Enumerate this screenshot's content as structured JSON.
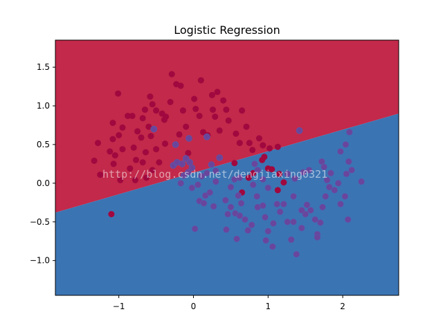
{
  "chart_data": {
    "type": "scatter",
    "title": "Logistic Regression",
    "xlabel": "",
    "ylabel": "",
    "xlim": [
      -1.85,
      2.75
    ],
    "ylim": [
      -1.45,
      1.85
    ],
    "xticks": [
      -1,
      0,
      1,
      2
    ],
    "yticks": [
      -1.0,
      -0.5,
      0.0,
      0.5,
      1.0,
      1.5
    ],
    "grid": false,
    "legend": "none",
    "decision_boundary": {
      "x": [
        -1.85,
        2.75
      ],
      "y": [
        -0.38,
        0.9
      ],
      "region_above": "class 0",
      "region_below": "class 1"
    },
    "colors": {
      "region_above": "#c2294a",
      "region_below": "#3b74b3",
      "class_0": "#a0083f",
      "class_1": "#6a459c",
      "class_1_edge": "#5260b2"
    },
    "series": [
      {
        "class": 0,
        "points": [
          [
            -1.28,
            0.52
          ],
          [
            -1.33,
            0.29
          ],
          [
            -1.25,
            0.11
          ],
          [
            -1.12,
            0.41
          ],
          [
            -1.07,
            0.25
          ],
          [
            -1.05,
            0.36
          ],
          [
            -1.08,
            0.57
          ],
          [
            -1.08,
            0.78
          ],
          [
            -1.0,
            0.62
          ],
          [
            -0.95,
            0.44
          ],
          [
            -0.95,
            0.72
          ],
          [
            -0.88,
            0.87
          ],
          [
            -0.82,
            0.87
          ],
          [
            -0.75,
            0.67
          ],
          [
            -0.8,
            0.46
          ],
          [
            -0.7,
            0.59
          ],
          [
            -0.68,
            0.84
          ],
          [
            -0.65,
            0.95
          ],
          [
            -0.6,
            0.73
          ],
          [
            -0.58,
            1.12
          ],
          [
            -0.55,
            1.02
          ],
          [
            -0.5,
            0.94
          ],
          [
            -0.42,
            0.9
          ],
          [
            -0.39,
            0.82
          ],
          [
            -0.31,
            1.05
          ],
          [
            -0.29,
            1.41
          ],
          [
            -0.23,
            1.28
          ],
          [
            -0.17,
            1.26
          ],
          [
            -0.64,
            0.4
          ],
          [
            -0.57,
            0.61
          ],
          [
            -0.5,
            0.44
          ],
          [
            -0.38,
            0.51
          ],
          [
            -0.46,
            0.27
          ],
          [
            -0.68,
            0.27
          ],
          [
            -0.77,
            0.3
          ],
          [
            -0.85,
            0.19
          ],
          [
            -0.55,
            0.17
          ],
          [
            -0.78,
            0.04
          ],
          [
            -0.63,
            0.07
          ],
          [
            -0.98,
            0.04
          ],
          [
            -1.01,
            1.16
          ],
          [
            -0.19,
            0.63
          ],
          [
            -0.14,
            0.94
          ],
          [
            -0.1,
            0.73
          ],
          [
            -0.07,
            0.39
          ],
          [
            0.01,
            1.09
          ],
          [
            0.03,
            0.96
          ],
          [
            0.08,
            0.87
          ],
          [
            0.1,
            1.33
          ],
          [
            0.13,
            0.66
          ],
          [
            0.19,
            0.62
          ],
          [
            0.25,
            1.14
          ],
          [
            0.26,
            0.95
          ],
          [
            0.29,
            0.86
          ],
          [
            0.32,
            1.18
          ],
          [
            0.35,
            0.68
          ],
          [
            0.4,
            1.07
          ],
          [
            0.44,
            0.95
          ],
          [
            0.47,
            0.81
          ],
          [
            0.57,
            0.64
          ],
          [
            0.62,
            0.52
          ],
          [
            0.65,
            0.94
          ],
          [
            0.71,
            0.73
          ],
          [
            0.75,
            0.52
          ],
          [
            0.79,
            0.43
          ],
          [
            0.88,
            0.58
          ],
          [
            0.93,
            0.49
          ],
          [
            1.02,
            0.45
          ],
          [
            1.13,
            0.47
          ],
          [
            0.95,
            0.34
          ],
          [
            0.92,
            0.3
          ],
          [
            1.0,
            0.19
          ],
          [
            1.05,
            0.18
          ],
          [
            1.15,
            0.12
          ],
          [
            0.8,
            0.13
          ],
          [
            0.74,
            0.07
          ],
          [
            0.55,
            0.26
          ],
          [
            1.13,
            -0.09
          ],
          [
            1.21,
            0.01
          ],
          [
            0.65,
            -0.12
          ],
          [
            -0.37,
            0.86
          ],
          [
            -1.1,
            -0.4
          ]
        ]
      },
      {
        "class": 1,
        "points": [
          [
            -0.27,
            0.23
          ],
          [
            -0.22,
            0.27
          ],
          [
            -0.15,
            0.25
          ],
          [
            -0.1,
            0.32
          ],
          [
            -0.05,
            0.27
          ],
          [
            -0.07,
            0.14
          ],
          [
            -0.02,
            0.2
          ],
          [
            -0.02,
            -0.06
          ],
          [
            0.06,
            -0.02
          ],
          [
            0.11,
            0.09
          ],
          [
            0.18,
            0.13
          ],
          [
            0.24,
            0.24
          ],
          [
            0.3,
            0.16
          ],
          [
            0.35,
            0.33
          ],
          [
            0.08,
            -0.23
          ],
          [
            0.14,
            -0.26
          ],
          [
            0.16,
            -0.16
          ],
          [
            0.22,
            -0.12
          ],
          [
            0.27,
            -0.3
          ],
          [
            0.3,
            0.02
          ],
          [
            0.43,
            -0.22
          ],
          [
            0.5,
            -0.05
          ],
          [
            0.5,
            -0.31
          ],
          [
            0.56,
            -0.39
          ],
          [
            0.6,
            -0.16
          ],
          [
            0.64,
            -0.26
          ],
          [
            0.69,
            -0.47
          ],
          [
            0.73,
            -0.61
          ],
          [
            0.78,
            -0.54
          ],
          [
            0.86,
            -0.31
          ],
          [
            0.93,
            -0.29
          ],
          [
            0.96,
            -0.44
          ],
          [
            1.0,
            -0.62
          ],
          [
            1.07,
            -0.52
          ],
          [
            1.12,
            -0.27
          ],
          [
            1.16,
            -0.37
          ],
          [
            1.21,
            -0.27
          ],
          [
            1.26,
            -0.5
          ],
          [
            1.31,
            -0.73
          ],
          [
            1.34,
            -0.5
          ],
          [
            1.38,
            -0.92
          ],
          [
            1.45,
            -0.58
          ],
          [
            1.5,
            -0.4
          ],
          [
            1.52,
            -0.28
          ],
          [
            1.57,
            -0.35
          ],
          [
            1.63,
            -0.47
          ],
          [
            1.66,
            -0.66
          ],
          [
            1.7,
            -0.51
          ],
          [
            1.73,
            -0.31
          ],
          [
            1.77,
            -0.17
          ],
          [
            1.79,
            0.04
          ],
          [
            1.82,
            -0.05
          ],
          [
            1.84,
            0.13
          ],
          [
            1.89,
            -0.09
          ],
          [
            1.94,
            0.0
          ],
          [
            1.97,
            -0.27
          ],
          [
            2.03,
            -0.17
          ],
          [
            2.05,
            0.12
          ],
          [
            2.12,
            0.17
          ],
          [
            2.08,
            0.28
          ],
          [
            1.97,
            0.41
          ],
          [
            2.04,
            0.5
          ],
          [
            2.09,
            0.66
          ],
          [
            1.72,
            0.28
          ],
          [
            1.75,
            0.21
          ],
          [
            1.55,
            0.17
          ],
          [
            1.47,
            0.14
          ],
          [
            1.42,
            0.68
          ],
          [
            1.26,
            0.12
          ],
          [
            1.36,
            0.06
          ],
          [
            1.34,
            -0.17
          ],
          [
            1.45,
            -0.35
          ],
          [
            -0.24,
            0.5
          ],
          [
            -0.06,
            0.58
          ],
          [
            0.18,
            0.6
          ],
          [
            -0.53,
            0.7
          ],
          [
            0.55,
            0.05
          ],
          [
            0.62,
            0.07
          ],
          [
            0.8,
            -0.02
          ],
          [
            0.82,
            0.25
          ],
          [
            0.86,
            0.17
          ],
          [
            0.85,
            -0.17
          ],
          [
            1.0,
            -0.06
          ],
          [
            1.06,
            -0.82
          ],
          [
            0.97,
            -0.74
          ],
          [
            0.62,
            -0.42
          ],
          [
            0.46,
            -0.4
          ],
          [
            2.07,
            -0.47
          ],
          [
            2.25,
            0.02
          ],
          [
            -0.17,
            0.0
          ],
          [
            -0.13,
            0.1
          ],
          [
            0.02,
            -0.59
          ],
          [
            0.58,
            -0.72
          ],
          [
            1.66,
            -0.7
          ],
          [
            0.44,
            -0.6
          ],
          [
            0.93,
            0.05
          ]
        ]
      }
    ]
  },
  "watermark": "http://blog.csdn.net/dengjiaxing0321"
}
